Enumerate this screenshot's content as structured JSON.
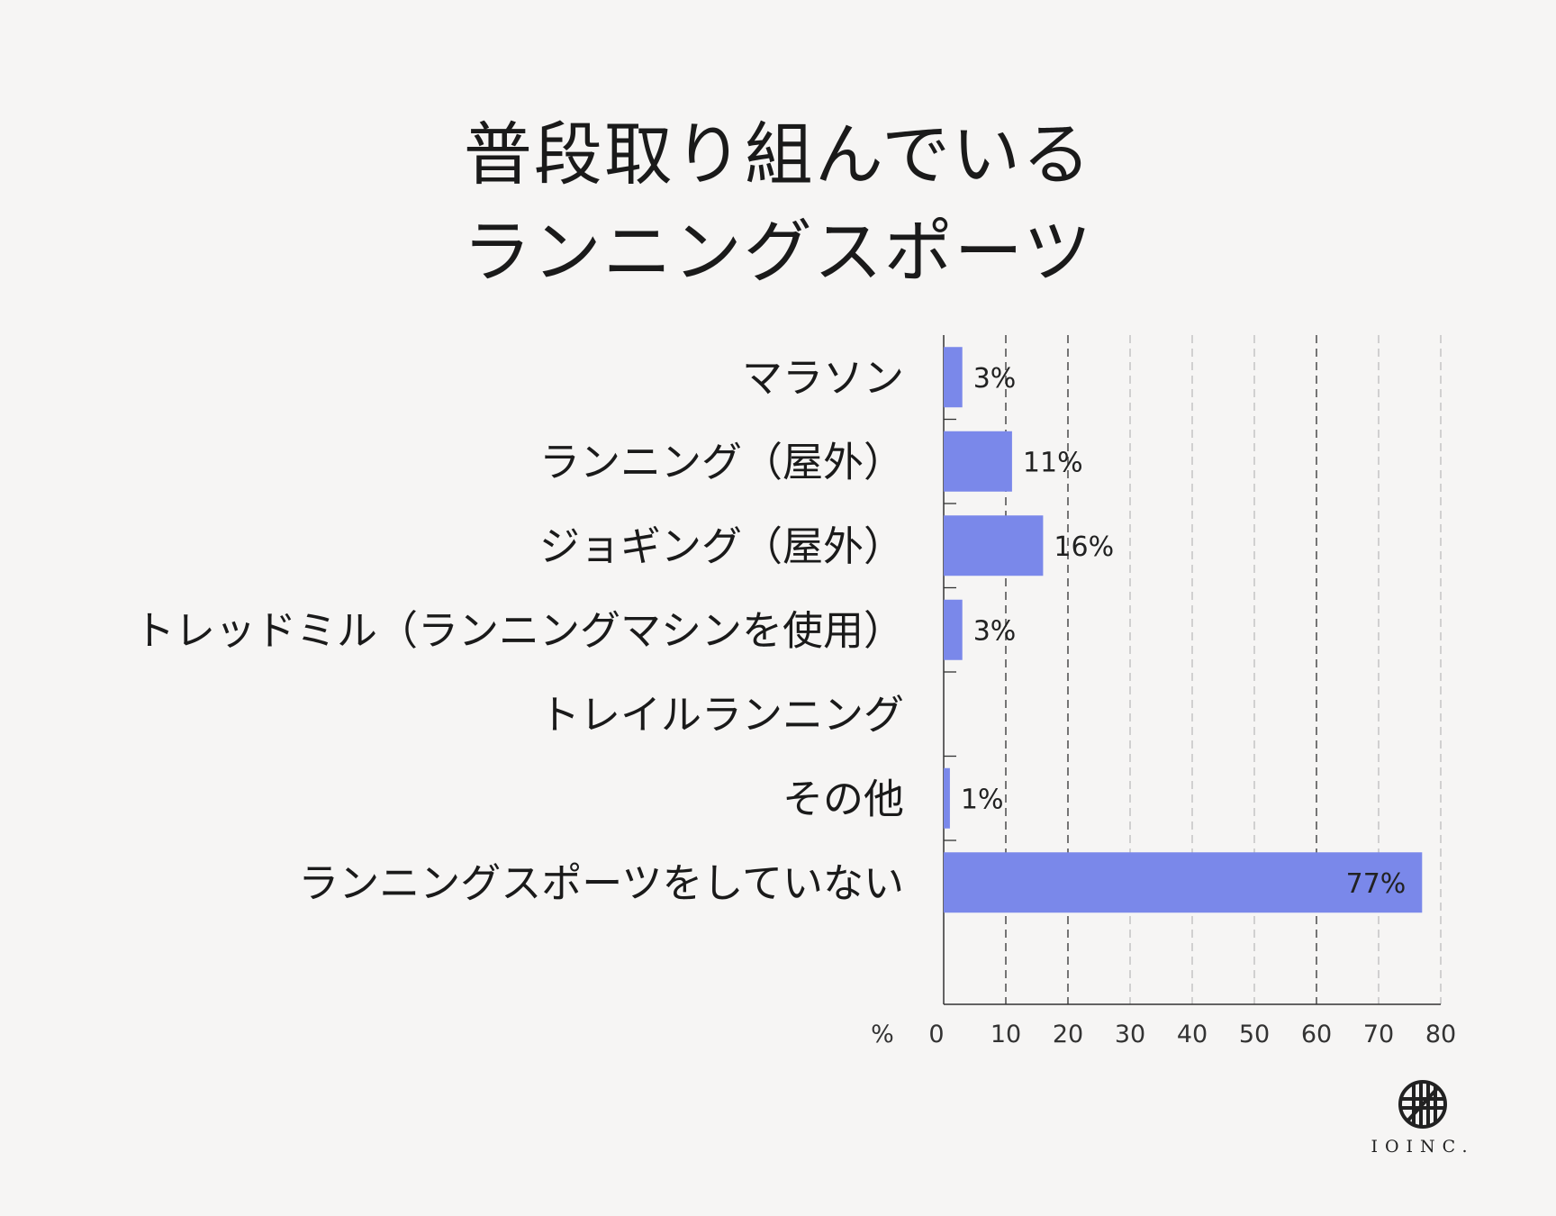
{
  "colors": {
    "bar": "#7a88ea",
    "background": "#f6f5f4",
    "text": "#1a1a1a"
  },
  "logo": {
    "text": "IOINC.",
    "icon": "hatched-circle-icon"
  },
  "chart_data": {
    "type": "bar",
    "orientation": "horizontal",
    "title_lines": [
      "普段取り組んでいる",
      "ランニングスポーツ"
    ],
    "categories": [
      "マラソン",
      "ランニング（屋外）",
      "ジョギング（屋外）",
      "トレッドミル（ランニングマシンを使用）",
      "トレイルランニング",
      "その他",
      "ランニングスポーツをしていない"
    ],
    "values": [
      3,
      11,
      16,
      3,
      0,
      1,
      77
    ],
    "value_labels": [
      "3%",
      "11%",
      "16%",
      "3%",
      "",
      "1%",
      "77%"
    ],
    "xlabel": "%",
    "xlim": [
      0,
      80
    ],
    "xticks": [
      0,
      10,
      20,
      30,
      40,
      50,
      60,
      70,
      80
    ],
    "grid": true
  }
}
